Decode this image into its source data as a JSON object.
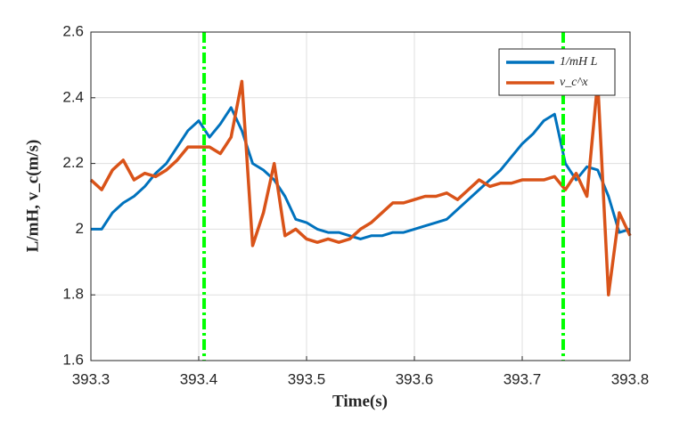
{
  "chart_data": {
    "type": "line",
    "xlabel": "Time(s)",
    "ylabel": "L/mH, v_c(m/s)",
    "x": [
      393.3,
      393.31,
      393.32,
      393.33,
      393.34,
      393.35,
      393.36,
      393.37,
      393.38,
      393.39,
      393.4,
      393.41,
      393.42,
      393.43,
      393.44,
      393.45,
      393.46,
      393.47,
      393.48,
      393.49,
      393.5,
      393.51,
      393.52,
      393.53,
      393.54,
      393.55,
      393.56,
      393.57,
      393.58,
      393.59,
      393.6,
      393.61,
      393.62,
      393.63,
      393.64,
      393.65,
      393.66,
      393.67,
      393.68,
      393.69,
      393.7,
      393.71,
      393.72,
      393.73,
      393.74,
      393.75,
      393.76,
      393.77,
      393.78,
      393.79,
      393.8
    ],
    "series": [
      {
        "name": "1/mH L",
        "color": "#0072bd",
        "values": [
          2.0,
          2.0,
          2.05,
          2.08,
          2.1,
          2.13,
          2.17,
          2.2,
          2.25,
          2.3,
          2.33,
          2.28,
          2.32,
          2.37,
          2.3,
          2.2,
          2.18,
          2.15,
          2.1,
          2.03,
          2.02,
          2.0,
          1.99,
          1.99,
          1.98,
          1.97,
          1.98,
          1.98,
          1.99,
          1.99,
          2.0,
          2.01,
          2.02,
          2.03,
          2.06,
          2.09,
          2.12,
          2.15,
          2.18,
          2.22,
          2.26,
          2.29,
          2.33,
          2.35,
          2.2,
          2.15,
          2.19,
          2.18,
          2.1,
          1.99,
          2.0
        ]
      },
      {
        "name": "v_c^x",
        "color": "#d95319",
        "values": [
          2.15,
          2.12,
          2.18,
          2.21,
          2.15,
          2.17,
          2.16,
          2.18,
          2.21,
          2.25,
          2.25,
          2.25,
          2.23,
          2.28,
          2.45,
          1.95,
          2.05,
          2.2,
          1.98,
          2.0,
          1.97,
          1.96,
          1.97,
          1.96,
          1.97,
          2.0,
          2.02,
          2.05,
          2.08,
          2.08,
          2.09,
          2.1,
          2.1,
          2.11,
          2.09,
          2.12,
          2.15,
          2.13,
          2.14,
          2.14,
          2.15,
          2.15,
          2.15,
          2.16,
          2.12,
          2.17,
          2.1,
          2.45,
          1.8,
          2.05,
          1.98
        ]
      }
    ],
    "vlines": [
      {
        "x": 393.405,
        "color": "#00ff00"
      },
      {
        "x": 393.738,
        "color": "#00ff00"
      }
    ],
    "xlim": [
      393.3,
      393.8
    ],
    "xticks": [
      393.3,
      393.4,
      393.5,
      393.6,
      393.7,
      393.8
    ],
    "ylim": [
      1.6,
      2.6
    ],
    "yticks": [
      1.6,
      1.8,
      2,
      2.2,
      2.4,
      2.6
    ],
    "grid": true,
    "legend": "upper right"
  }
}
